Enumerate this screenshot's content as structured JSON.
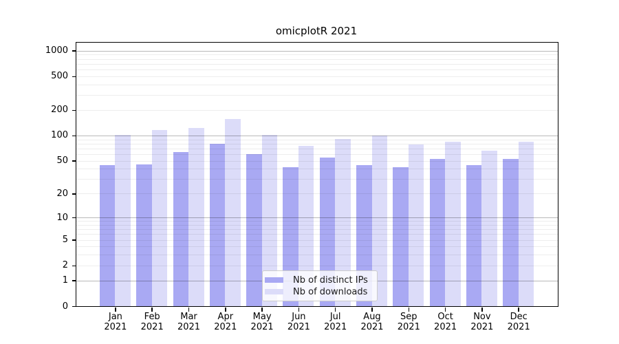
{
  "chart_data": {
    "type": "bar",
    "title": "omicplotR 2021",
    "categories": [
      "Jan",
      "Feb",
      "Mar",
      "Apr",
      "May",
      "Jun",
      "Jul",
      "Aug",
      "Sep",
      "Oct",
      "Nov",
      "Dec"
    ],
    "category_year": "2021",
    "series": [
      {
        "name": "Nb of distinct IPs",
        "color": "#a9a9f3",
        "values": [
          44,
          45,
          63,
          80,
          60,
          42,
          55,
          44,
          42,
          53,
          44,
          53
        ]
      },
      {
        "name": "Nb of downloads",
        "color": "#dcdcf9",
        "values": [
          102,
          115,
          122,
          156,
          101,
          76,
          91,
          99,
          78,
          85,
          66,
          85
        ]
      }
    ],
    "xlabel": "",
    "ylabel": "",
    "yscale": "log1p",
    "ylim": [
      0,
      1000
    ],
    "y_tick_values": [
      0,
      1,
      2,
      5,
      10,
      20,
      50,
      100,
      200,
      500,
      1000
    ],
    "y_major_gridlines": [
      1,
      10,
      100,
      1000
    ],
    "grid": true,
    "legend_position": "inside-bottom-center",
    "colors": {
      "major_gridline": "rgba(0,0,0,0.28)",
      "minor_gridline": "rgba(0,0,0,0.07)",
      "axis": "#000000",
      "legend_border": "#cccccc"
    }
  }
}
